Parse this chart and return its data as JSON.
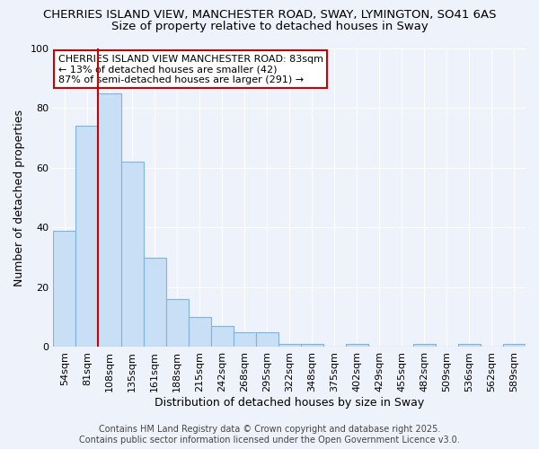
{
  "title_line1": "CHERRIES ISLAND VIEW, MANCHESTER ROAD, SWAY, LYMINGTON, SO41 6AS",
  "title_line2": "Size of property relative to detached houses in Sway",
  "xlabel": "Distribution of detached houses by size in Sway",
  "ylabel": "Number of detached properties",
  "bar_color": "#c9dff5",
  "bar_edge_color": "#7db4e0",
  "background_color": "#eef2fb",
  "grid_color": "#ffffff",
  "categories": [
    "54sqm",
    "81sqm",
    "108sqm",
    "135sqm",
    "161sqm",
    "188sqm",
    "215sqm",
    "242sqm",
    "268sqm",
    "295sqm",
    "322sqm",
    "348sqm",
    "375sqm",
    "402sqm",
    "429sqm",
    "455sqm",
    "482sqm",
    "509sqm",
    "536sqm",
    "562sqm",
    "589sqm"
  ],
  "values": [
    39,
    74,
    85,
    62,
    30,
    16,
    10,
    7,
    5,
    5,
    1,
    1,
    0,
    1,
    0,
    0,
    1,
    0,
    1,
    0,
    1
  ],
  "ylim": [
    0,
    100
  ],
  "yticks": [
    0,
    20,
    40,
    60,
    80,
    100
  ],
  "red_line_x": 1.5,
  "annotation_text": "CHERRIES ISLAND VIEW MANCHESTER ROAD: 83sqm\n← 13% of detached houses are smaller (42)\n87% of semi-detached houses are larger (291) →",
  "annotation_box_color": "#ffffff",
  "annotation_box_edge": "#cc0000",
  "red_line_color": "#cc0000",
  "footer_line1": "Contains HM Land Registry data © Crown copyright and database right 2025.",
  "footer_line2": "Contains public sector information licensed under the Open Government Licence v3.0.",
  "title_fontsize": 9.5,
  "subtitle_fontsize": 9.5,
  "axis_label_fontsize": 9,
  "tick_fontsize": 8,
  "annotation_fontsize": 8,
  "footer_fontsize": 7
}
